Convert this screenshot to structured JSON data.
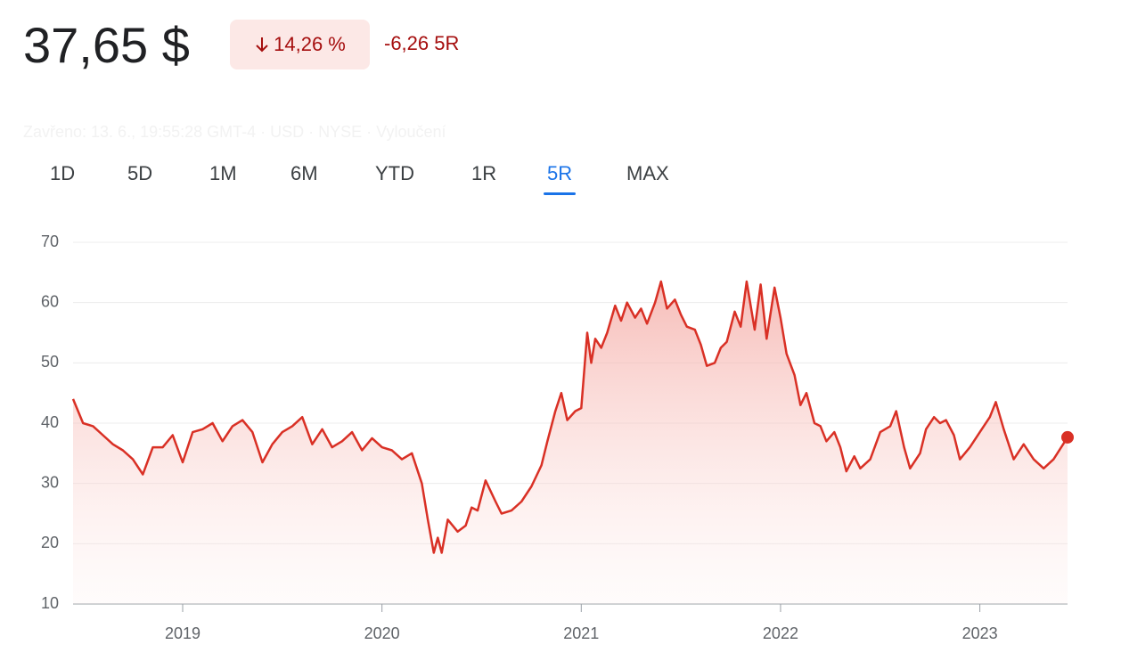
{
  "header": {
    "price": "37,65 $",
    "change_percent": "14,26 %",
    "change_abs": "-6,26 5R",
    "closed_note": "Zavřeno: 13. 6., 19:55:28 GMT-4 · USD · NYSE · Vyloučení"
  },
  "tabs": {
    "items": [
      "1D",
      "5D",
      "1M",
      "6M",
      "YTD",
      "1R",
      "5R",
      "MAX"
    ],
    "active": 6
  },
  "chart_data": {
    "type": "area",
    "color": "#d93025",
    "grid": true,
    "xlim": [
      2018.45,
      2023.44
    ],
    "xticks": [
      2019,
      2020,
      2021,
      2022,
      2023
    ],
    "ylim": [
      10,
      70
    ],
    "yticks": [
      10,
      20,
      30,
      40,
      50,
      60,
      70
    ],
    "x": [
      2018.45,
      2018.5,
      2018.55,
      2018.6,
      2018.65,
      2018.7,
      2018.75,
      2018.8,
      2018.85,
      2018.9,
      2018.95,
      2019.0,
      2019.05,
      2019.1,
      2019.15,
      2019.2,
      2019.25,
      2019.3,
      2019.35,
      2019.4,
      2019.45,
      2019.5,
      2019.55,
      2019.6,
      2019.65,
      2019.7,
      2019.75,
      2019.8,
      2019.85,
      2019.9,
      2019.95,
      2020.0,
      2020.05,
      2020.1,
      2020.15,
      2020.2,
      2020.23,
      2020.26,
      2020.28,
      2020.3,
      2020.33,
      2020.38,
      2020.42,
      2020.45,
      2020.48,
      2020.52,
      2020.57,
      2020.6,
      2020.65,
      2020.7,
      2020.75,
      2020.8,
      2020.83,
      2020.87,
      2020.9,
      2020.93,
      2020.97,
      2021.0,
      2021.03,
      2021.05,
      2021.07,
      2021.1,
      2021.13,
      2021.17,
      2021.2,
      2021.23,
      2021.27,
      2021.3,
      2021.33,
      2021.37,
      2021.4,
      2021.43,
      2021.47,
      2021.5,
      2021.53,
      2021.57,
      2021.6,
      2021.63,
      2021.67,
      2021.7,
      2021.73,
      2021.77,
      2021.8,
      2021.83,
      2021.87,
      2021.9,
      2021.93,
      2021.97,
      2022.0,
      2022.03,
      2022.07,
      2022.1,
      2022.13,
      2022.17,
      2022.2,
      2022.23,
      2022.27,
      2022.3,
      2022.33,
      2022.37,
      2022.4,
      2022.45,
      2022.5,
      2022.55,
      2022.58,
      2022.62,
      2022.65,
      2022.7,
      2022.73,
      2022.77,
      2022.8,
      2022.83,
      2022.87,
      2022.9,
      2022.95,
      2023.0,
      2023.05,
      2023.08,
      2023.12,
      2023.17,
      2023.22,
      2023.27,
      2023.32,
      2023.37,
      2023.44
    ],
    "values": [
      44,
      40,
      39.5,
      38,
      36.5,
      35.5,
      34,
      31.5,
      36,
      36,
      38,
      33.5,
      38.5,
      39,
      40,
      37,
      39.5,
      40.5,
      38.5,
      33.5,
      36.5,
      38.5,
      39.5,
      41,
      36.5,
      39,
      36,
      37,
      38.5,
      35.5,
      37.5,
      36,
      35.5,
      34,
      35,
      30,
      24,
      18.5,
      21,
      18.5,
      24,
      22,
      23,
      26,
      25.5,
      30.5,
      27,
      25,
      25.5,
      27,
      29.5,
      33,
      37,
      42,
      45,
      40.5,
      42,
      42.5,
      55,
      50,
      54,
      52.5,
      55,
      59.5,
      57,
      60,
      57.5,
      59,
      56.5,
      60,
      63.5,
      59,
      60.5,
      58,
      56,
      55.5,
      53,
      49.5,
      50,
      52.5,
      53.5,
      58.5,
      56,
      63.5,
      55.5,
      63,
      54,
      62.5,
      57.5,
      51.5,
      48,
      43,
      45,
      40,
      39.5,
      37,
      38.5,
      36,
      32,
      34.5,
      32.5,
      34,
      38.5,
      39.5,
      42,
      36,
      32.5,
      35,
      39,
      41,
      40,
      40.5,
      38,
      34,
      36,
      38.5,
      41,
      43.5,
      39,
      34,
      36.5,
      34,
      32.5,
      34,
      37.65
    ]
  }
}
